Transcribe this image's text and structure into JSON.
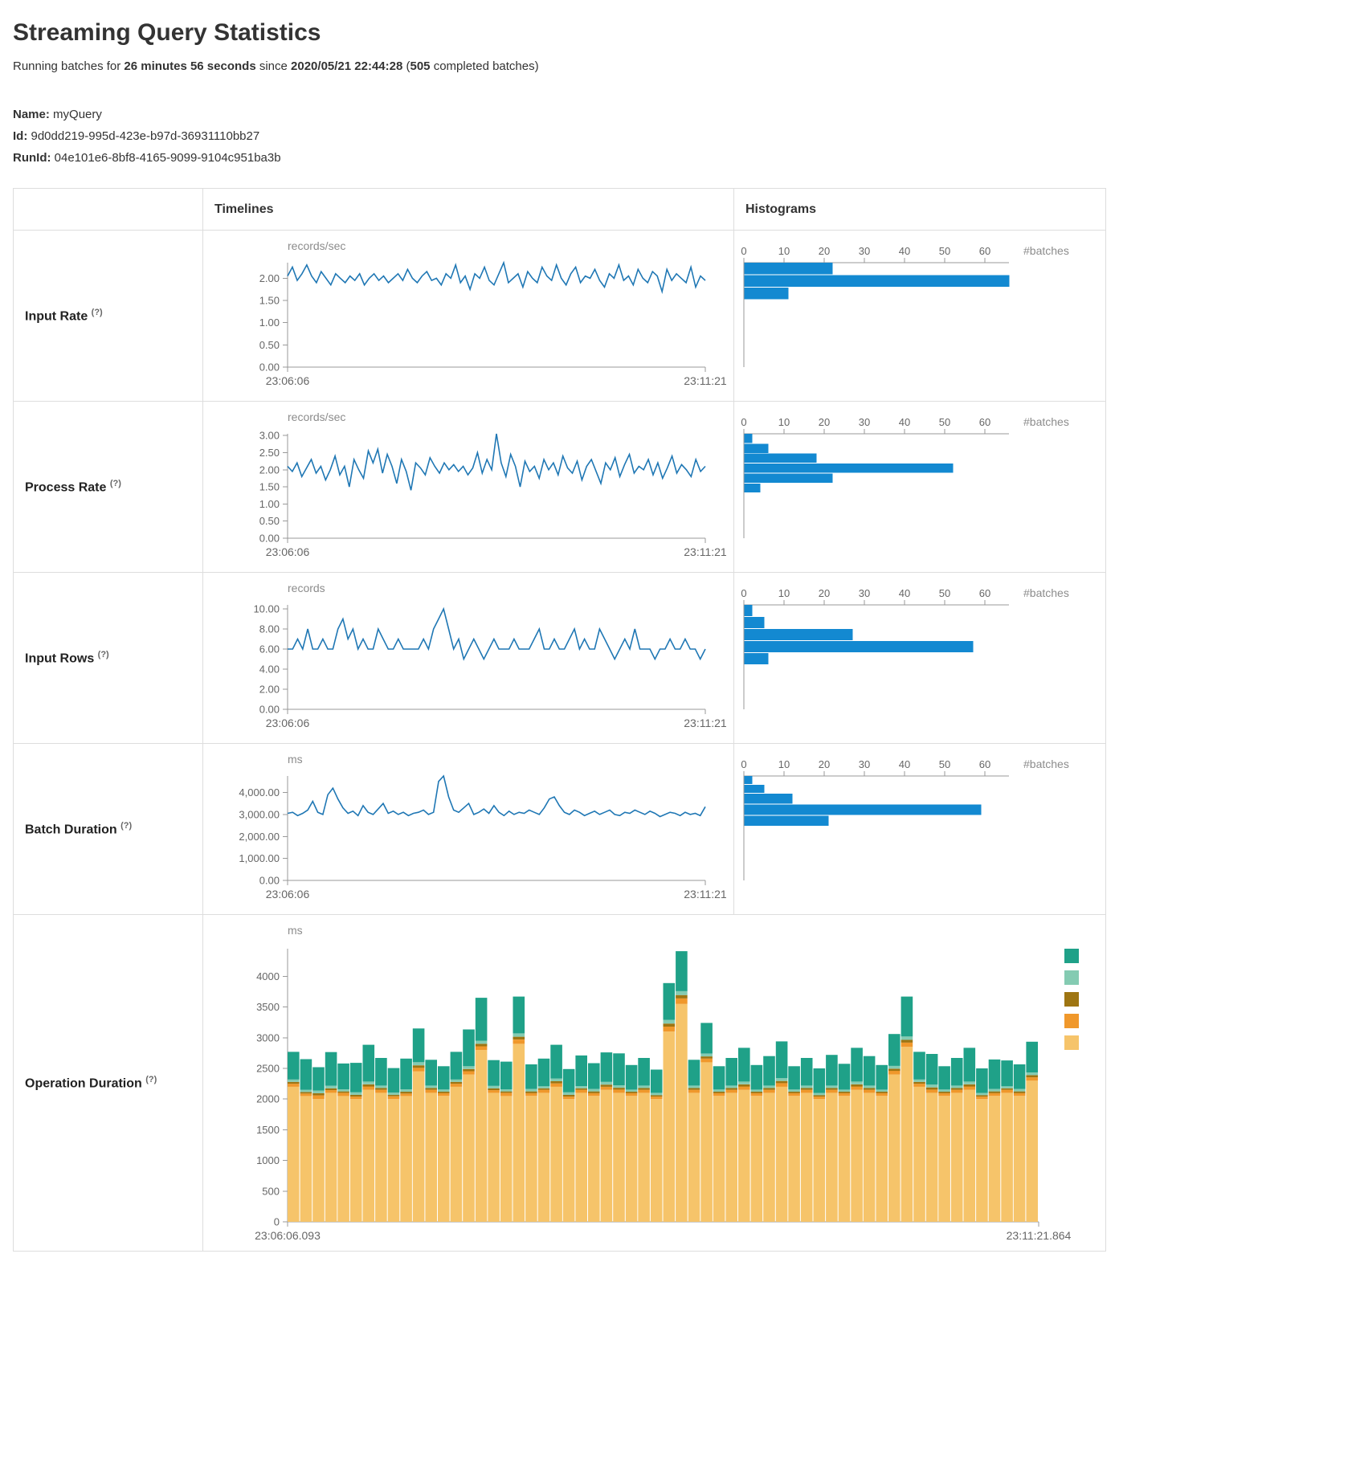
{
  "page": {
    "title": "Streaming Query Statistics",
    "subtitle": {
      "prefix": "Running batches for ",
      "duration": "26 minutes 56 seconds",
      "mid": " since ",
      "since": "2020/05/21 22:44:28",
      "paren": " (",
      "batches": "505",
      "suffix": " completed batches)"
    },
    "name_label": "Name:",
    "name_value": "myQuery",
    "id_label": "Id:",
    "id_value": "9d0dd219-995d-423e-b97d-36931110bb27",
    "runid_label": "RunId:",
    "runid_value": "04e101e6-8bf8-4165-9099-9104c951ba3b"
  },
  "table": {
    "col_timelines": "Timelines",
    "col_histograms": "Histograms",
    "help_marker": "(?)"
  },
  "colors": {
    "line": "#1f77b4",
    "bar": "#1389d1",
    "axis": "#999999",
    "stack": [
      "#f6c46a",
      "#f0982b",
      "#9e7512",
      "#84cbb2",
      "#1fa188"
    ]
  },
  "chart_data": [
    {
      "label": "Input Rate",
      "type": "line+histogram",
      "unit": "records/sec",
      "ymax": 2.35,
      "y_ticks": [
        0,
        0.5,
        1,
        1.5,
        2
      ],
      "y_tick_labels": [
        "0.00",
        "0.50",
        "1.00",
        "1.50",
        "2.00"
      ],
      "x_start": "23:06:06",
      "x_end": "23:11:21",
      "timeline": [
        2.05,
        2.25,
        1.95,
        2.1,
        2.3,
        2.05,
        1.9,
        2.15,
        2.0,
        1.85,
        2.1,
        2.0,
        1.9,
        2.05,
        1.95,
        2.1,
        1.85,
        2.0,
        2.1,
        1.95,
        2.05,
        1.9,
        2.0,
        2.1,
        1.95,
        2.2,
        2.0,
        1.9,
        2.05,
        2.15,
        1.95,
        2.0,
        1.85,
        2.1,
        2.0,
        2.3,
        1.9,
        2.05,
        1.75,
        2.1,
        2.0,
        2.25,
        1.95,
        1.85,
        2.1,
        2.35,
        1.9,
        2.0,
        2.1,
        1.8,
        2.15,
        2.0,
        1.9,
        2.25,
        2.05,
        1.95,
        2.3,
        2.0,
        1.85,
        2.1,
        2.25,
        1.9,
        2.05,
        2.0,
        2.2,
        1.95,
        1.8,
        2.1,
        2.0,
        2.3,
        1.95,
        2.05,
        1.85,
        2.2,
        2.0,
        1.9,
        2.15,
        2.05,
        1.7,
        2.2,
        1.95,
        2.1,
        2.0,
        1.9,
        2.25,
        1.8,
        2.05,
        1.95
      ],
      "hist": {
        "xlabel": "#batches",
        "xmax": 66,
        "x_ticks": [
          0,
          10,
          20,
          30,
          40,
          50,
          60
        ],
        "bins": [
          {
            "hi": 2.35,
            "lo": 2.07,
            "count": 22
          },
          {
            "hi": 2.07,
            "lo": 1.79,
            "count": 66
          },
          {
            "hi": 1.79,
            "lo": 1.51,
            "count": 11
          }
        ]
      }
    },
    {
      "label": "Process Rate",
      "type": "line+histogram",
      "unit": "records/sec",
      "ymax": 3.05,
      "y_ticks": [
        0,
        0.5,
        1,
        1.5,
        2,
        2.5,
        3
      ],
      "y_tick_labels": [
        "0.00",
        "0.50",
        "1.00",
        "1.50",
        "2.00",
        "2.50",
        "3.00"
      ],
      "x_start": "23:06:06",
      "x_end": "23:11:21",
      "timeline": [
        2.1,
        1.95,
        2.2,
        1.8,
        2.05,
        2.3,
        1.9,
        2.1,
        1.7,
        2.0,
        2.4,
        1.85,
        2.1,
        1.5,
        2.3,
        2.0,
        1.75,
        2.55,
        2.2,
        2.6,
        1.9,
        2.45,
        2.1,
        1.6,
        2.3,
        1.95,
        1.4,
        2.2,
        2.05,
        1.85,
        2.35,
        2.1,
        1.9,
        2.2,
        2.0,
        2.15,
        1.95,
        2.1,
        1.85,
        2.05,
        2.5,
        1.9,
        2.3,
        2.0,
        3.05,
        2.2,
        1.8,
        2.45,
        2.1,
        1.5,
        2.25,
        1.95,
        2.1,
        1.75,
        2.3,
        2.0,
        2.2,
        1.85,
        2.4,
        2.05,
        1.9,
        2.25,
        1.7,
        2.1,
        2.3,
        1.95,
        1.6,
        2.2,
        2.0,
        2.35,
        1.8,
        2.15,
        2.45,
        1.9,
        2.1,
        2.0,
        2.3,
        1.85,
        2.2,
        1.75,
        2.05,
        2.4,
        1.9,
        2.15,
        2.0,
        1.8,
        2.3,
        1.95,
        2.1
      ],
      "hist": {
        "xlabel": "#batches",
        "xmax": 66,
        "x_ticks": [
          0,
          10,
          20,
          30,
          40,
          50,
          60
        ],
        "bins": [
          {
            "hi": 3.05,
            "lo": 2.76,
            "count": 2
          },
          {
            "hi": 2.76,
            "lo": 2.47,
            "count": 6
          },
          {
            "hi": 2.47,
            "lo": 2.18,
            "count": 18
          },
          {
            "hi": 2.18,
            "lo": 1.89,
            "count": 52
          },
          {
            "hi": 1.89,
            "lo": 1.6,
            "count": 22
          },
          {
            "hi": 1.6,
            "lo": 1.31,
            "count": 4
          }
        ]
      }
    },
    {
      "label": "Input Rows",
      "type": "line+histogram",
      "unit": "records",
      "ymax": 10.4,
      "y_ticks": [
        0,
        2,
        4,
        6,
        8,
        10
      ],
      "y_tick_labels": [
        "0.00",
        "2.00",
        "4.00",
        "6.00",
        "8.00",
        "10.00"
      ],
      "x_start": "23:06:06",
      "x_end": "23:11:21",
      "timeline": [
        6,
        6,
        7,
        6,
        8,
        6,
        6,
        7,
        6,
        6,
        8,
        9,
        7,
        8,
        6,
        7,
        6,
        6,
        8,
        7,
        6,
        6,
        7,
        6,
        6,
        6,
        6,
        7,
        6,
        8,
        9,
        10,
        8,
        6,
        7,
        5,
        6,
        7,
        6,
        5,
        6,
        7,
        6,
        6,
        6,
        7,
        6,
        6,
        6,
        7,
        8,
        6,
        6,
        7,
        6,
        6,
        7,
        8,
        6,
        7,
        6,
        6,
        8,
        7,
        6,
        5,
        6,
        7,
        6,
        8,
        6,
        6,
        6,
        5,
        6,
        6,
        7,
        6,
        6,
        7,
        6,
        6,
        5,
        6
      ],
      "hist": {
        "xlabel": "#batches",
        "xmax": 66,
        "x_ticks": [
          0,
          10,
          20,
          30,
          40,
          50,
          60
        ],
        "bins": [
          {
            "hi": 10.4,
            "lo": 9.2,
            "count": 2
          },
          {
            "hi": 9.2,
            "lo": 8.0,
            "count": 5
          },
          {
            "hi": 8.0,
            "lo": 6.8,
            "count": 27
          },
          {
            "hi": 6.8,
            "lo": 5.6,
            "count": 57
          },
          {
            "hi": 5.6,
            "lo": 4.4,
            "count": 6
          }
        ]
      }
    },
    {
      "label": "Batch Duration",
      "type": "line+histogram",
      "unit": "ms",
      "ymax": 4750,
      "y_ticks": [
        0,
        1000,
        2000,
        3000,
        4000
      ],
      "y_tick_labels": [
        "0.00",
        "1,000.00",
        "2,000.00",
        "3,000.00",
        "4,000.00"
      ],
      "x_start": "23:06:06",
      "x_end": "23:11:21",
      "timeline": [
        3050,
        3100,
        2950,
        3050,
        3200,
        3600,
        3100,
        3000,
        3900,
        4200,
        3700,
        3300,
        3050,
        3150,
        2950,
        3400,
        3100,
        3000,
        3250,
        3500,
        3050,
        3150,
        3000,
        3100,
        2950,
        3050,
        3100,
        3200,
        3000,
        3100,
        4500,
        4750,
        3800,
        3200,
        3100,
        3300,
        3500,
        3000,
        3100,
        3250,
        3050,
        3400,
        3100,
        2950,
        3150,
        3000,
        3100,
        3050,
        3200,
        3100,
        3000,
        3300,
        3700,
        3800,
        3400,
        3100,
        3000,
        3200,
        3100,
        2950,
        3050,
        3150,
        3000,
        3100,
        3200,
        3000,
        2950,
        3100,
        3050,
        3200,
        3100,
        3000,
        3150,
        3050,
        2900,
        3000,
        3100,
        3050,
        2950,
        3100,
        3000,
        3050,
        2950,
        3350
      ],
      "hist": {
        "xlabel": "#batches",
        "xmax": 66,
        "x_ticks": [
          0,
          10,
          20,
          30,
          40,
          50,
          60
        ],
        "bins": [
          {
            "hi": 4750,
            "lo": 4350,
            "count": 2
          },
          {
            "hi": 4350,
            "lo": 3950,
            "count": 5
          },
          {
            "hi": 3950,
            "lo": 3450,
            "count": 12
          },
          {
            "hi": 3450,
            "lo": 2950,
            "count": 59
          },
          {
            "hi": 2950,
            "lo": 2450,
            "count": 21
          }
        ]
      }
    },
    {
      "label": "Operation Duration",
      "type": "stacked-bar",
      "unit": "ms",
      "ymax": 4450,
      "y_ticks": [
        0,
        500,
        1000,
        1500,
        2000,
        2500,
        3000,
        3500,
        4000
      ],
      "y_tick_labels": [
        "0",
        "500",
        "1000",
        "1500",
        "2000",
        "2500",
        "3000",
        "3500",
        "4000"
      ],
      "x_start": "23:06:06.093",
      "x_end": "23:11:21.864",
      "series": [
        {
          "values": [
            2200,
            2050,
            2000,
            2100,
            2050,
            2000,
            2150,
            2100,
            2000,
            2050,
            2450,
            2100,
            2050,
            2200,
            2400,
            2800,
            2100,
            2050,
            2900,
            2050,
            2100,
            2200,
            2000,
            2100,
            2050,
            2150,
            2100,
            2050,
            2100,
            2000,
            3100,
            3550,
            2100,
            2600,
            2050,
            2100,
            2150,
            2050,
            2100,
            2200,
            2050,
            2100,
            2000,
            2100,
            2050,
            2150,
            2100,
            2050,
            2400,
            2850,
            2200,
            2100,
            2050,
            2100,
            2150,
            2000,
            2050,
            2100,
            2050,
            2300
          ]
        },
        {
          "values": [
            50,
            40,
            60,
            45,
            50,
            40,
            55,
            50,
            45,
            40,
            60,
            50,
            45,
            50,
            55,
            60,
            45,
            50,
            70,
            45,
            50,
            55,
            40,
            50,
            45,
            50,
            55,
            45,
            50,
            40,
            80,
            90,
            50,
            60,
            45,
            50,
            55,
            45,
            50,
            60,
            45,
            50,
            40,
            50,
            45,
            55,
            50,
            45,
            60,
            70,
            50,
            55,
            45,
            50,
            55,
            40,
            45,
            50,
            45,
            55
          ]
        },
        {
          "values": [
            30,
            25,
            35,
            30,
            25,
            30,
            35,
            30,
            25,
            30,
            40,
            30,
            25,
            30,
            35,
            40,
            30,
            25,
            45,
            30,
            25,
            35,
            30,
            25,
            30,
            35,
            30,
            25,
            30,
            25,
            50,
            55,
            30,
            35,
            25,
            30,
            35,
            25,
            30,
            35,
            25,
            30,
            25,
            30,
            25,
            35,
            30,
            25,
            35,
            45,
            30,
            35,
            25,
            30,
            35,
            25,
            30,
            25,
            30,
            35
          ]
        },
        {
          "values": [
            40,
            35,
            45,
            40,
            35,
            40,
            45,
            40,
            35,
            40,
            50,
            40,
            35,
            40,
            45,
            50,
            40,
            35,
            55,
            40,
            35,
            45,
            40,
            35,
            40,
            45,
            40,
            35,
            40,
            35,
            60,
            65,
            40,
            45,
            35,
            40,
            45,
            35,
            40,
            45,
            35,
            40,
            35,
            40,
            35,
            45,
            40,
            35,
            45,
            55,
            40,
            45,
            35,
            40,
            45,
            35,
            40,
            35,
            40,
            45
          ]
        },
        {
          "values": [
            450,
            500,
            380,
            550,
            420,
            480,
            600,
            450,
            400,
            500,
            550,
            420,
            380,
            450,
            600,
            700,
            420,
            450,
            600,
            400,
            450,
            550,
            380,
            500,
            420,
            480,
            520,
            400,
            450,
            380,
            600,
            650,
            420,
            500,
            380,
            450,
            550,
            400,
            480,
            600,
            380,
            450,
            400,
            500,
            420,
            550,
            480,
            400,
            520,
            650,
            450,
            500,
            380,
            450,
            550,
            400,
            480,
            420,
            400,
            500
          ]
        }
      ]
    }
  ]
}
